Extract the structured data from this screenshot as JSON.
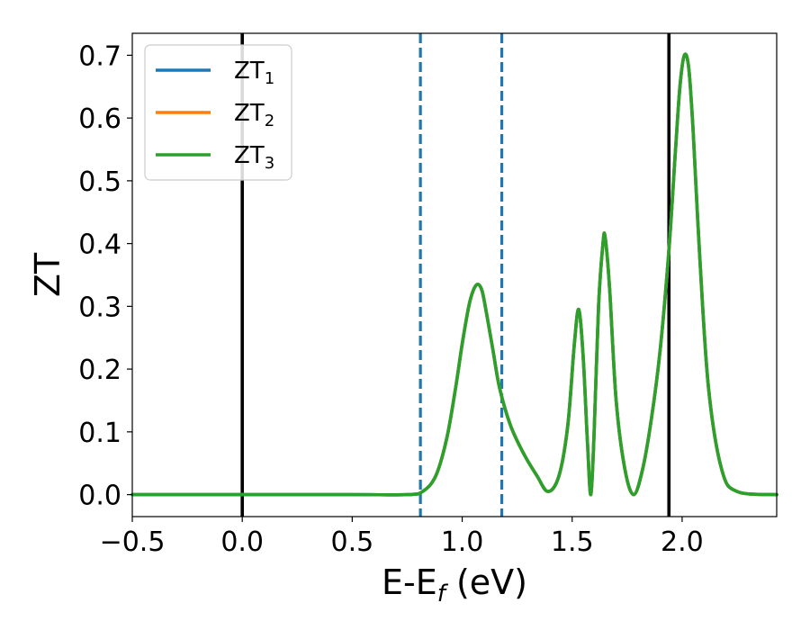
{
  "chart_data": {
    "type": "line",
    "xlabel": "E-E",
    "xlabel_sub": "f",
    "xlabel_unit": " (eV)",
    "ylabel": "ZT",
    "xlim": [
      -0.5,
      2.43
    ],
    "ylim": [
      -0.035,
      0.735
    ],
    "xticks": [
      -0.5,
      0.0,
      0.5,
      1.0,
      1.5,
      2.0
    ],
    "xtick_labels": [
      "−0.5",
      "0.0",
      "0.5",
      "1.0",
      "1.5",
      "2.0"
    ],
    "yticks": [
      0.0,
      0.1,
      0.2,
      0.3,
      0.4,
      0.5,
      0.6,
      0.7
    ],
    "ytick_labels": [
      "0.0",
      "0.1",
      "0.2",
      "0.3",
      "0.4",
      "0.5",
      "0.6",
      "0.7"
    ],
    "grid": false,
    "legend_position": "top-left",
    "series": [
      {
        "name": "ZT",
        "sub": "1",
        "color": "#1f77b4",
        "x": [
          -0.5,
          0.0,
          0.5,
          0.75,
          0.82,
          0.88,
          0.93,
          0.97,
          1.0,
          1.03,
          1.05,
          1.07,
          1.09,
          1.11,
          1.14,
          1.17,
          1.22,
          1.28,
          1.34,
          1.39,
          1.44,
          1.48,
          1.51,
          1.53,
          1.55,
          1.57,
          1.585,
          1.6,
          1.62,
          1.64,
          1.65,
          1.67,
          1.7,
          1.74,
          1.78,
          1.82,
          1.86,
          1.9,
          1.94,
          1.97,
          1.99,
          2.01,
          2.03,
          2.05,
          2.08,
          2.12,
          2.18,
          2.25,
          2.43
        ],
        "y": [
          0.0,
          0.0,
          0.0,
          0.0,
          0.005,
          0.03,
          0.09,
          0.17,
          0.24,
          0.3,
          0.325,
          0.335,
          0.325,
          0.29,
          0.23,
          0.17,
          0.11,
          0.065,
          0.03,
          0.005,
          0.03,
          0.11,
          0.24,
          0.295,
          0.22,
          0.08,
          0.0,
          0.1,
          0.3,
          0.4,
          0.41,
          0.33,
          0.15,
          0.04,
          0.0,
          0.04,
          0.12,
          0.23,
          0.39,
          0.55,
          0.65,
          0.7,
          0.68,
          0.58,
          0.38,
          0.17,
          0.04,
          0.005,
          0.0
        ]
      },
      {
        "name": "ZT",
        "sub": "2",
        "color": "#ff7f0e",
        "x": [
          -0.5,
          0.0,
          0.5,
          0.75,
          0.82,
          0.88,
          0.93,
          0.97,
          1.0,
          1.03,
          1.05,
          1.07,
          1.09,
          1.11,
          1.14,
          1.17,
          1.22,
          1.28,
          1.34,
          1.39,
          1.44,
          1.48,
          1.51,
          1.53,
          1.55,
          1.57,
          1.585,
          1.6,
          1.62,
          1.64,
          1.65,
          1.67,
          1.7,
          1.74,
          1.78,
          1.82,
          1.86,
          1.9,
          1.94,
          1.97,
          1.99,
          2.01,
          2.03,
          2.05,
          2.08,
          2.12,
          2.18,
          2.25,
          2.43
        ],
        "y": [
          0.0,
          0.0,
          0.0,
          0.0,
          0.005,
          0.03,
          0.09,
          0.17,
          0.24,
          0.3,
          0.325,
          0.335,
          0.325,
          0.29,
          0.23,
          0.17,
          0.11,
          0.065,
          0.03,
          0.005,
          0.03,
          0.11,
          0.24,
          0.295,
          0.22,
          0.08,
          0.0,
          0.1,
          0.3,
          0.4,
          0.41,
          0.33,
          0.15,
          0.04,
          0.0,
          0.04,
          0.12,
          0.23,
          0.39,
          0.55,
          0.65,
          0.7,
          0.68,
          0.58,
          0.38,
          0.17,
          0.04,
          0.005,
          0.0
        ]
      },
      {
        "name": "ZT",
        "sub": "3",
        "color": "#2ca02c",
        "x": [
          -0.5,
          0.0,
          0.5,
          0.75,
          0.82,
          0.88,
          0.93,
          0.97,
          1.0,
          1.03,
          1.05,
          1.07,
          1.09,
          1.11,
          1.14,
          1.17,
          1.22,
          1.28,
          1.34,
          1.39,
          1.44,
          1.48,
          1.51,
          1.53,
          1.55,
          1.57,
          1.585,
          1.6,
          1.62,
          1.64,
          1.65,
          1.67,
          1.7,
          1.74,
          1.78,
          1.82,
          1.86,
          1.9,
          1.94,
          1.97,
          1.99,
          2.01,
          2.03,
          2.05,
          2.08,
          2.12,
          2.18,
          2.25,
          2.43
        ],
        "y": [
          0.0,
          0.0,
          0.0,
          0.0,
          0.005,
          0.03,
          0.09,
          0.17,
          0.24,
          0.3,
          0.325,
          0.335,
          0.325,
          0.29,
          0.23,
          0.17,
          0.11,
          0.065,
          0.03,
          0.005,
          0.03,
          0.11,
          0.24,
          0.295,
          0.22,
          0.08,
          0.0,
          0.1,
          0.3,
          0.4,
          0.41,
          0.33,
          0.15,
          0.04,
          0.0,
          0.04,
          0.12,
          0.23,
          0.39,
          0.55,
          0.65,
          0.7,
          0.68,
          0.58,
          0.38,
          0.17,
          0.04,
          0.005,
          0.0
        ]
      }
    ],
    "vertical_lines": [
      {
        "x": 0.0,
        "style": "solid",
        "color": "#000000"
      },
      {
        "x": 1.94,
        "style": "solid",
        "color": "#000000"
      },
      {
        "x": 0.81,
        "style": "dashed",
        "color": "#1f77b4"
      },
      {
        "x": 1.18,
        "style": "dashed",
        "color": "#1f77b4"
      }
    ]
  }
}
